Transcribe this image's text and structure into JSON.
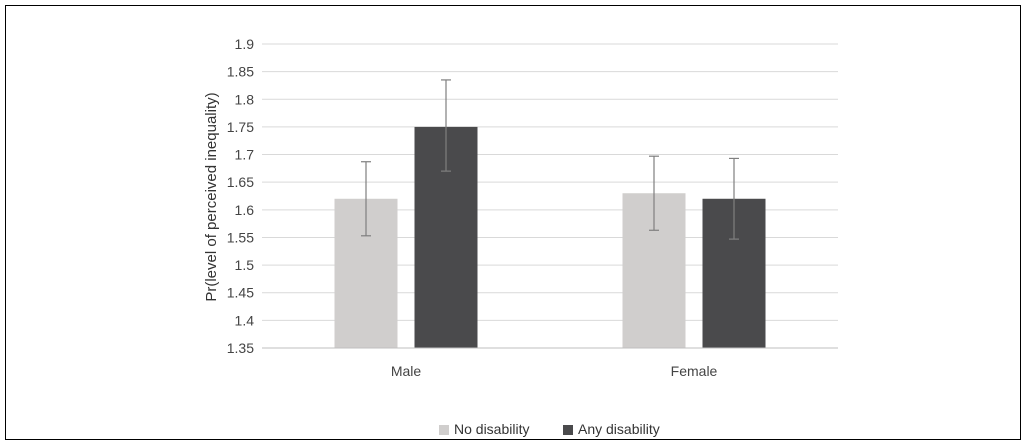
{
  "chart_data": {
    "type": "bar",
    "title": "",
    "xlabel": "",
    "ylabel": "Pr(level of perceived inequality)",
    "ylim": [
      1.35,
      1.9
    ],
    "yticks": [
      1.35,
      1.4,
      1.45,
      1.5,
      1.55,
      1.6,
      1.65,
      1.7,
      1.75,
      1.8,
      1.85,
      1.9
    ],
    "grid": true,
    "legend_position": "bottom",
    "categories": [
      "Male",
      "Female"
    ],
    "series": [
      {
        "name": "No disability",
        "color": "#d0cecd",
        "values": [
          1.62,
          1.63
        ],
        "error_low": [
          1.553,
          1.563
        ],
        "error_high": [
          1.687,
          1.697
        ]
      },
      {
        "name": "Any disability",
        "color": "#4a4a4c",
        "values": [
          1.75,
          1.62
        ],
        "error_low": [
          1.67,
          1.547
        ],
        "error_high": [
          1.835,
          1.693
        ]
      }
    ]
  }
}
